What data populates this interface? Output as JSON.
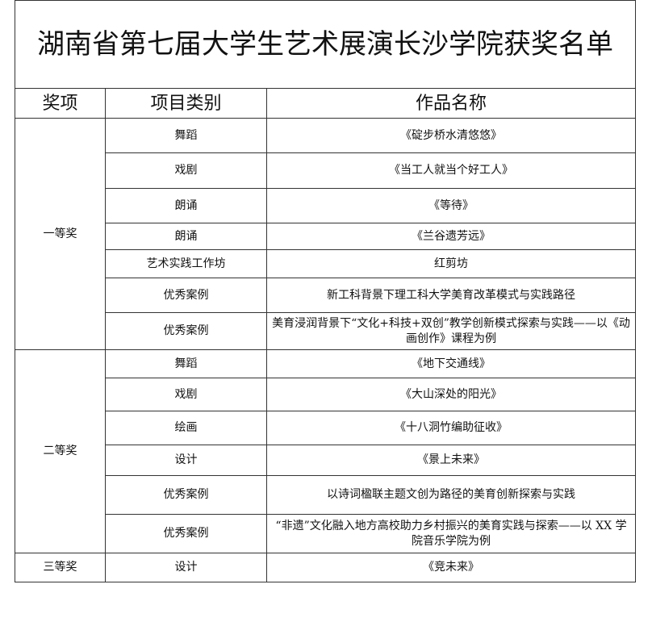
{
  "title": "湖南省第七届大学生艺术展演长沙学院获奖名单",
  "headers": [
    "奖项",
    "项目类别",
    "作品名称"
  ],
  "groups": [
    {
      "award": "一等奖",
      "rows": [
        {
          "category": "舞蹈",
          "work": "《碇步桥水清悠悠》"
        },
        {
          "category": "戏剧",
          "work": "《当工人就当个好工人》"
        },
        {
          "category": "朗诵",
          "work": "《等待》"
        },
        {
          "category": "朗诵",
          "work": "《兰谷遗芳远》"
        },
        {
          "category": "艺术实践工作坊",
          "work": "红剪坊"
        },
        {
          "category": "优秀案例",
          "work": "新工科背景下理工科大学美育改革模式与实践路径"
        },
        {
          "category": "优秀案例",
          "work": "美育浸润背景下“文化+科技+双创”教学创新模式探索与实践——以《动画创作》课程为例"
        }
      ]
    },
    {
      "award": "二等奖",
      "rows": [
        {
          "category": "舞蹈",
          "work": "《地下交通线》"
        },
        {
          "category": "戏剧",
          "work": "《大山深处的阳光》"
        },
        {
          "category": "绘画",
          "work": "《十八洞竹编助征收》"
        },
        {
          "category": "设计",
          "work": "《景上未来》"
        },
        {
          "category": "优秀案例",
          "work": "以诗词楹联主题文创为路径的美育创新探索与实践"
        },
        {
          "category": "优秀案例",
          "work": "“非遗”文化融入地方高校助力乡村振兴的美育实践与探索——以 XX 学院音乐学院为例"
        }
      ]
    },
    {
      "award": "三等奖",
      "rows": [
        {
          "category": "设计",
          "work": "《竞未来》"
        }
      ]
    }
  ]
}
